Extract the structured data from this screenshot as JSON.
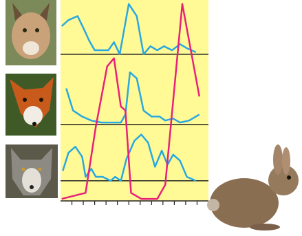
{
  "chart_data": {
    "type": "line",
    "xlim": [
      0,
      13
    ],
    "ylim": [
      0,
      100
    ],
    "xticks": [
      1,
      2,
      3,
      4,
      5,
      6,
      7,
      8,
      9,
      10,
      11,
      12
    ],
    "background": "#fffa96",
    "reference_lines": [
      73,
      38,
      10
    ],
    "series": [
      {
        "color": "#29a8e0",
        "x": [
          0.1,
          0.7,
          1.5,
          2.1,
          2.5,
          3.0,
          3.6,
          4.2,
          4.7,
          5.2,
          6.0,
          6.7,
          7.3,
          7.9,
          8.5,
          9.1,
          9.8,
          10.5,
          11.1,
          11.9
        ],
        "values": [
          87,
          90,
          92,
          85,
          80,
          75,
          75,
          75,
          79,
          73,
          98,
          92,
          73,
          77,
          75,
          77,
          75,
          78,
          76,
          74
        ]
      },
      {
        "color": "#29a8e0",
        "x": [
          0.5,
          1.1,
          1.9,
          2.7,
          3.6,
          4.7,
          5.3,
          5.7,
          6.1,
          6.7,
          7.3,
          8.0,
          8.7,
          9.2,
          9.9,
          10.5,
          11.3,
          12.2
        ],
        "values": [
          56,
          45,
          42,
          40,
          39,
          39,
          39,
          43,
          64,
          61,
          45,
          42,
          42,
          40,
          41,
          39,
          40,
          43
        ]
      },
      {
        "color": "#29a8e0",
        "x": [
          0.2,
          0.7,
          1.3,
          1.9,
          2.2,
          2.7,
          3.1,
          3.7,
          4.4,
          4.8,
          5.3,
          5.8,
          6.5,
          7.1,
          7.7,
          8.3,
          8.9,
          9.4,
          9.9,
          10.5,
          11.1,
          11.9
        ],
        "values": [
          15,
          24,
          27,
          22,
          12,
          16,
          12,
          12,
          10,
          12,
          10,
          21,
          30,
          33,
          29,
          17,
          25,
          18,
          23,
          20,
          12,
          10
        ]
      },
      {
        "color": "#e8207a",
        "x": [
          0.1,
          2.2,
          3.1,
          4.1,
          4.7,
          5.3,
          5.7,
          6.2,
          7.1,
          8.5,
          9.2,
          10.7,
          12.2
        ],
        "values": [
          1,
          4,
          37,
          67,
          71,
          47,
          45,
          4,
          1,
          1,
          8,
          98,
          52
        ]
      }
    ]
  }
}
